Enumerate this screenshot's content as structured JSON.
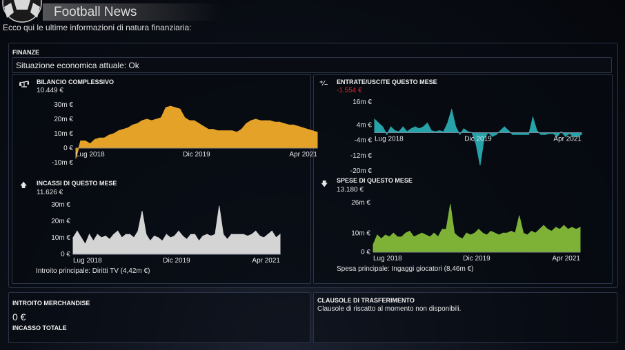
{
  "window": {
    "title": "Football News",
    "intro": "Ecco qui le ultime informazioni di natura finanziaria:"
  },
  "finance": {
    "heading": "FINANZE",
    "status": "Situazione economica attuale: Ok"
  },
  "charts": {
    "balance": {
      "title": "BILANCIO COMPLESSIVO",
      "value": "10.449 €",
      "chart_data": {
        "type": "area",
        "color": "#e5a228",
        "x_ticks": [
          "Lug 2018",
          "Dic 2019",
          "Apr 2021"
        ],
        "y_ticks": [
          "30m €",
          "20m €",
          "10m €",
          "0 €",
          "-10m €"
        ],
        "ylim": [
          -10,
          30
        ],
        "values": [
          -7,
          5,
          5,
          3,
          6,
          7,
          7,
          9,
          10,
          12,
          13,
          14,
          16,
          17,
          19,
          20,
          19,
          20,
          21,
          28,
          29,
          28,
          27,
          21,
          19,
          19,
          17,
          15,
          13,
          13,
          12,
          12,
          12,
          12,
          11,
          13,
          17,
          19,
          20,
          19,
          19,
          19,
          18,
          18,
          17,
          16,
          16,
          15,
          14,
          13,
          12,
          11
        ]
      }
    },
    "income_expense": {
      "title": "ENTRATE/USCITE QUESTO MESE",
      "value": "-1.554 €",
      "chart_data": {
        "type": "area",
        "color": "#27a2a8",
        "x_ticks": [
          "Lug 2018",
          "Dic 2019",
          "Apr 2021"
        ],
        "y_ticks": [
          "16m €",
          "4m €",
          "-4m €",
          "-12m €",
          "-20m €"
        ],
        "ylim": [
          -20,
          16
        ],
        "values": [
          7,
          5,
          3,
          -1,
          3,
          1,
          0.5,
          3,
          0.5,
          2,
          3,
          2,
          3,
          5,
          1,
          0.5,
          1,
          0.5,
          5,
          12,
          3,
          -1,
          2,
          0.5,
          0,
          -6,
          -17,
          -3,
          0,
          -2,
          -1,
          1,
          3,
          1,
          -1,
          -1,
          -1,
          -1,
          -1,
          8,
          1,
          -1,
          -1,
          -0.5,
          -0.5,
          -2,
          0.5,
          -2,
          -0.5,
          -2,
          -2,
          -1
        ]
      }
    },
    "monthly_income": {
      "title": "INCASSI DI QUESTO MESE",
      "value": "11.626 €",
      "summary": "Introito principale:  Diritti TV (4,42m €)",
      "chart_data": {
        "type": "area",
        "color": "#d4d4d4",
        "x_ticks": [
          "Lug 2018",
          "Dic 2019",
          "Apr 2021"
        ],
        "y_ticks": [
          "30m €",
          "20m €",
          "10m €",
          "0 €"
        ],
        "ylim": [
          0,
          30
        ],
        "values": [
          10,
          14,
          10,
          6,
          12,
          8,
          12,
          10,
          11,
          9,
          12,
          14,
          10,
          12,
          12,
          10,
          14,
          26,
          12,
          8,
          11,
          10,
          8,
          12,
          10,
          11,
          14,
          11,
          9,
          12,
          12,
          8,
          11,
          12,
          11,
          12,
          29,
          12,
          9,
          12,
          12,
          12,
          12,
          11,
          12,
          14,
          11,
          10,
          12,
          14,
          10,
          12
        ]
      }
    },
    "monthly_expenses": {
      "title": "SPESE DI QUESTO MESE",
      "value": "13.180 €",
      "summary": "Spesa principale:  Ingaggi giocatori (8,46m €)",
      "chart_data": {
        "type": "area",
        "color": "#7db237",
        "x_ticks": [
          "Lug 2018",
          "Dic 2019",
          "Apr 2021"
        ],
        "y_ticks": [
          "26m €",
          "10m €",
          "0 €"
        ],
        "ylim": [
          0,
          26
        ],
        "values": [
          4,
          9,
          7,
          9,
          8,
          10,
          8,
          8,
          10,
          11,
          8,
          9,
          10,
          9,
          8,
          10,
          8,
          12,
          12,
          25,
          10,
          8,
          7,
          10,
          9,
          10,
          12,
          10,
          9,
          11,
          10,
          9,
          10,
          10,
          11,
          10,
          19,
          10,
          9,
          11,
          10,
          12,
          14,
          12,
          11,
          13,
          12,
          14,
          12,
          13,
          12,
          13
        ]
      }
    }
  },
  "merch": {
    "heading": "INTROITO MERCHANDISE",
    "value": "0 €",
    "total_heading": "INCASSO TOTALE"
  },
  "transfer": {
    "heading": "CLAUSOLE DI TRASFERIMENTO",
    "text": "Clausole di riscatto al momento non disponibili."
  }
}
